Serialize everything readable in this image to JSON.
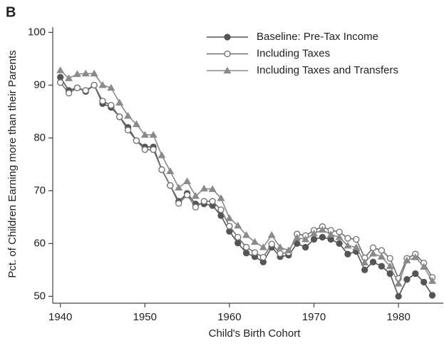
{
  "chart_data": {
    "type": "line",
    "panel_label": "B",
    "xlabel": "Child's Birth Cohort",
    "ylabel": "Pct. of Children Earning more than their Parents",
    "x": [
      1940,
      1941,
      1942,
      1943,
      1944,
      1945,
      1946,
      1947,
      1948,
      1949,
      1950,
      1951,
      1952,
      1953,
      1954,
      1955,
      1956,
      1957,
      1958,
      1959,
      1960,
      1961,
      1962,
      1963,
      1964,
      1965,
      1966,
      1967,
      1968,
      1969,
      1970,
      1971,
      1972,
      1973,
      1974,
      1975,
      1976,
      1977,
      1978,
      1979,
      1980,
      1981,
      1982,
      1983,
      1984
    ],
    "series": [
      {
        "name": "Baseline: Pre-Tax Income",
        "color": "#555555",
        "marker": "filled-circle",
        "values": [
          91.5,
          89,
          89.5,
          88.8,
          90,
          86.5,
          85.8,
          84,
          82,
          79.5,
          78.3,
          78.3,
          74,
          71,
          68,
          69.5,
          67.5,
          67.5,
          67.2,
          65.3,
          62.3,
          60.1,
          58.2,
          57.5,
          56.5,
          59.3,
          57.5,
          57.8,
          60,
          59.3,
          60.8,
          61.2,
          60.8,
          60,
          58,
          58.5,
          55,
          56.5,
          55.7,
          54.3,
          50,
          53.2,
          54.3,
          52.7,
          50.2
        ]
      },
      {
        "name": "Including Taxes",
        "color": "#6e6e6e",
        "marker": "open-circle",
        "values": [
          90.5,
          88.5,
          89.5,
          89,
          90,
          87,
          86.2,
          84,
          81.5,
          79.5,
          77.8,
          77.8,
          74,
          71,
          67.6,
          69.2,
          66.9,
          68,
          68,
          66.4,
          63.3,
          61.2,
          59.3,
          58.3,
          57.4,
          59.9,
          58.1,
          58.3,
          61.8,
          61.5,
          62.5,
          63.2,
          62.5,
          62.2,
          61,
          60.8,
          57.3,
          59.2,
          58.7,
          57.2,
          53.4,
          57.2,
          58,
          56.3,
          53.6
        ]
      },
      {
        "name": "Including Taxes and Transfers",
        "color": "#8a8a8a",
        "marker": "triangle",
        "values": [
          92.8,
          91.3,
          92.1,
          92.2,
          92.2,
          90,
          89.5,
          86.7,
          84.2,
          82.6,
          80.6,
          80.6,
          76.7,
          73.7,
          70.6,
          71.8,
          69,
          70.4,
          70.3,
          68.6,
          64.8,
          63.4,
          61.6,
          60.3,
          59.3,
          61.6,
          59.3,
          58.7,
          61.1,
          60.8,
          61.9,
          62.6,
          61.7,
          61.2,
          59.6,
          59.3,
          56.4,
          58.1,
          57.5,
          55.7,
          52.4,
          56.8,
          57.4,
          55.6,
          52.9
        ]
      }
    ],
    "xlim": [
      1939.1,
      1985.3
    ],
    "ylim": [
      48.7,
      101
    ],
    "xticks": [
      1940,
      1950,
      1960,
      1970,
      1980
    ],
    "yticks": [
      50,
      60,
      70,
      80,
      90,
      100
    ],
    "grid": false,
    "legend": "top"
  }
}
